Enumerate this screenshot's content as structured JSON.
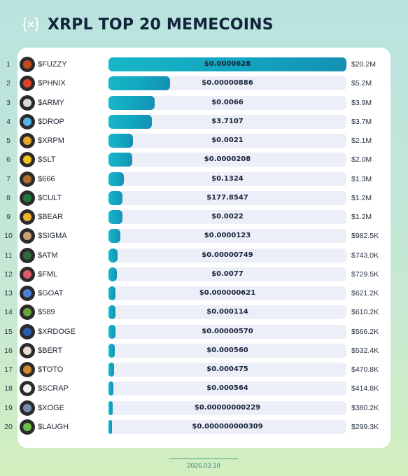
{
  "header": {
    "title": "XRPL TOP 20 MEMECOINS",
    "logo_icon": "xrp-bracket-logo-icon"
  },
  "footer": {
    "date": "2026.03.19"
  },
  "colors": {
    "bar": "#17b7c7",
    "track": "#eceef8",
    "title": "#12243c"
  },
  "chart_data": {
    "type": "bar",
    "orientation": "horizontal",
    "title": "XRPL TOP 20 MEMECOINS",
    "xlabel": "",
    "ylabel": "",
    "rows": [
      {
        "rank": "1",
        "name": "$FUZZY",
        "price": "$0.0000628",
        "mcap": "$20.2M",
        "value": 20200000,
        "avatar_color": "#c4491d"
      },
      {
        "rank": "2",
        "name": "$PHNIX",
        "price": "$0.00000886",
        "mcap": "$5.2M",
        "value": 5200000,
        "avatar_color": "#e0432a"
      },
      {
        "rank": "3",
        "name": "$ARMY",
        "price": "$0.0066",
        "mcap": "$3.9M",
        "value": 3900000,
        "avatar_color": "#d8d8d8"
      },
      {
        "rank": "4",
        "name": "$DROP",
        "price": "$3.7107",
        "mcap": "$3.7M",
        "value": 3700000,
        "avatar_color": "#4fb7e8"
      },
      {
        "rank": "5",
        "name": "$XRPM",
        "price": "$0.0021",
        "mcap": "$2.1M",
        "value": 2100000,
        "avatar_color": "#e8a92a"
      },
      {
        "rank": "6",
        "name": "$SLT",
        "price": "$0.0000208",
        "mcap": "$2.0M",
        "value": 2000000,
        "avatar_color": "#f0c419"
      },
      {
        "rank": "7",
        "name": "$666",
        "price": "$0.1324",
        "mcap": "$1.3M",
        "value": 1300000,
        "avatar_color": "#b3702c"
      },
      {
        "rank": "8",
        "name": "$CULT",
        "price": "$177.8547",
        "mcap": "$1.2M",
        "value": 1200000,
        "avatar_color": "#1e7a3a"
      },
      {
        "rank": "9",
        "name": "$BEAR",
        "price": "$0.0022",
        "mcap": "$1.2M",
        "value": 1200000,
        "avatar_color": "#f0b429"
      },
      {
        "rank": "10",
        "name": "$SIGMA",
        "price": "$0.0000123",
        "mcap": "$982.5K",
        "value": 982500,
        "avatar_color": "#c9a07a"
      },
      {
        "rank": "11",
        "name": "$ATM",
        "price": "$0.00000749",
        "mcap": "$743.0K",
        "value": 743000,
        "avatar_color": "#2f6b3c"
      },
      {
        "rank": "12",
        "name": "$FML",
        "price": "$0.0077",
        "mcap": "$729.5K",
        "value": 729500,
        "avatar_color": "#e05a6a"
      },
      {
        "rank": "13",
        "name": "$GOAT",
        "price": "$0.000000621",
        "mcap": "$621.2K",
        "value": 621200,
        "avatar_color": "#4a7fd6"
      },
      {
        "rank": "14",
        "name": "$589",
        "price": "$0.000114",
        "mcap": "$610.2K",
        "value": 610200,
        "avatar_color": "#6aa33a"
      },
      {
        "rank": "15",
        "name": "$XRDOGE",
        "price": "$0.00000570",
        "mcap": "$566.2K",
        "value": 566200,
        "avatar_color": "#2a5fb0"
      },
      {
        "rank": "16",
        "name": "$BERT",
        "price": "$0.000560",
        "mcap": "$532.4K",
        "value": 532400,
        "avatar_color": "#e8dcd0"
      },
      {
        "rank": "17",
        "name": "$TOTO",
        "price": "$0.000475",
        "mcap": "$470.8K",
        "value": 470800,
        "avatar_color": "#d08a2a"
      },
      {
        "rank": "18",
        "name": "$SCRAP",
        "price": "$0.000564",
        "mcap": "$414.8K",
        "value": 414800,
        "avatar_color": "#f2f2f2"
      },
      {
        "rank": "19",
        "name": "$XOGE",
        "price": "$0.00000000229",
        "mcap": "$380.2K",
        "value": 380200,
        "avatar_color": "#7a8ab0"
      },
      {
        "rank": "20",
        "name": "$LAUGH",
        "price": "$0.000000000309",
        "mcap": "$299.3K",
        "value": 299300,
        "avatar_color": "#6dbf4a"
      }
    ],
    "xlim": [
      0,
      20200000
    ],
    "grid": false,
    "legend": "none"
  }
}
